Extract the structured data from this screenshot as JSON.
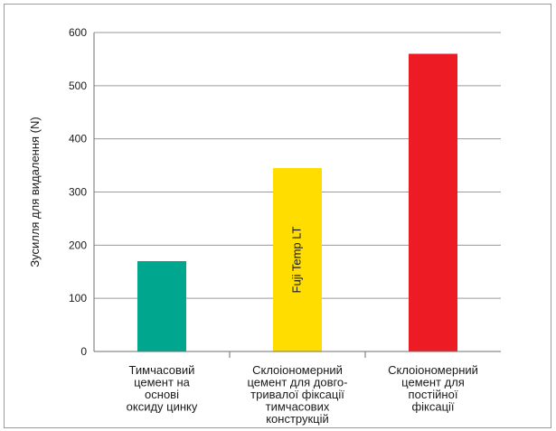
{
  "chart_data": {
    "type": "bar",
    "ylabel": "Зусилля для видалення (N)",
    "xlabel": "",
    "ylim": [
      0,
      600
    ],
    "yticks": [
      0,
      100,
      200,
      300,
      400,
      500,
      600
    ],
    "grid": true,
    "categories": [
      [
        "Тимчасовий",
        "цемент на",
        "основі",
        "оксиду цинку"
      ],
      [
        "Склоіономерний",
        "цемент для довго-",
        "тривалої фіксації",
        "тимчасових",
        "конструкцій"
      ],
      [
        "Склоіономерний",
        "цемент для",
        "постійної",
        "фіксації"
      ]
    ],
    "values": [
      170,
      345,
      560
    ],
    "bar_labels": [
      "",
      "Fuji Temp LT",
      ""
    ],
    "colors": [
      "#00a78e",
      "#ffdd00",
      "#ed1c24"
    ]
  }
}
